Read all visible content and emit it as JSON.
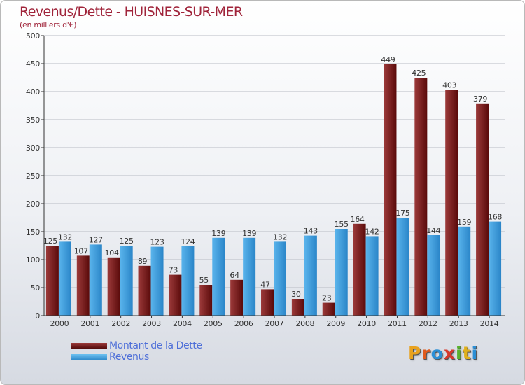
{
  "header": {
    "title": "Revenus/Dette - HUISNES-SUR-MER",
    "subtitle": "(en milliers d'€)"
  },
  "logo": {
    "letters": [
      "P",
      "r",
      "o",
      "x",
      "i",
      "t",
      "i"
    ],
    "colors": [
      "#e8a21f",
      "#e05a1c",
      "#2b8fd6",
      "#d8392b",
      "#59b22d",
      "#e0b01c",
      "#2b8fd6"
    ]
  },
  "colors": {
    "debt_light": "#9c3a3a",
    "debt_dark": "#5a0a0a",
    "rev_light": "#5ab4ec",
    "rev_dark": "#2a85c8",
    "grid": "#b8bcc4",
    "axis": "#333333"
  },
  "chart_data": {
    "type": "bar",
    "title": "Revenus/Dette - HUISNES-SUR-MER",
    "subtitle": "(en milliers d'€)",
    "categories": [
      "2000",
      "2001",
      "2002",
      "2003",
      "2004",
      "2005",
      "2006",
      "2007",
      "2008",
      "2009",
      "2010",
      "2011",
      "2012",
      "2013",
      "2014"
    ],
    "series": [
      {
        "name": "Montant de la Dette",
        "values": [
          125,
          107,
          104,
          89,
          73,
          55,
          64,
          47,
          30,
          23,
          164,
          449,
          425,
          403,
          379
        ]
      },
      {
        "name": "Revenus",
        "values": [
          132,
          127,
          125,
          123,
          124,
          139,
          139,
          132,
          143,
          155,
          142,
          175,
          144,
          159,
          168
        ]
      }
    ],
    "ylim": [
      0,
      500
    ],
    "yticks": [
      0,
      50,
      100,
      150,
      200,
      250,
      300,
      350,
      400,
      450,
      500
    ],
    "grid": true,
    "legend_position": "bottom-left"
  }
}
